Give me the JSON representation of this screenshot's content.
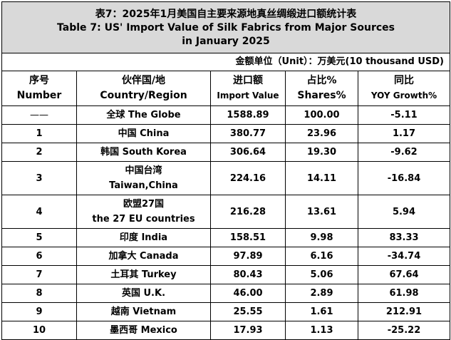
{
  "title": {
    "cn": "表7：2025年1月美国自主要来源地真丝绸缎进口额统计表",
    "en_line1": "Table 7: US' Import Value of Silk Fabrics from Major Sources",
    "en_line2": "in January 2025"
  },
  "unit": "金额单位（Unit）：万美元(10 thousand USD)",
  "headers": [
    {
      "cn": "序号",
      "en": "Number"
    },
    {
      "cn": "伙伴国/地",
      "en": "Country/Region"
    },
    {
      "cn": "进口额",
      "en": "Import Value"
    },
    {
      "cn": "占比%",
      "en": "Shares%"
    },
    {
      "cn": "同比",
      "en": "YOY Growth%"
    }
  ],
  "rows": [
    {
      "no": "——",
      "region": "全球 The Globe",
      "value": "1588.89",
      "share": "100.00",
      "yoy": "-5.11"
    },
    {
      "no": "1",
      "region": "中国 China",
      "value": "380.77",
      "share": "23.96",
      "yoy": "1.17"
    },
    {
      "no": "2",
      "region": "韩国 South Korea",
      "value": "306.64",
      "share": "19.30",
      "yoy": "-9.62"
    },
    {
      "no": "3",
      "region": "中国台湾",
      "region2": "Taiwan,China",
      "value": "224.16",
      "share": "14.11",
      "yoy": "-16.84"
    },
    {
      "no": "4",
      "region": "欧盟27国",
      "region2": "the 27 EU countries",
      "value": "216.28",
      "share": "13.61",
      "yoy": "5.94"
    },
    {
      "no": "5",
      "region": "印度 India",
      "value": "158.51",
      "share": "9.98",
      "yoy": "83.33"
    },
    {
      "no": "6",
      "region": "加拿大 Canada",
      "value": "97.89",
      "share": "6.16",
      "yoy": "-34.74"
    },
    {
      "no": "7",
      "region": "土耳其 Turkey",
      "value": "80.43",
      "share": "5.06",
      "yoy": "67.64"
    },
    {
      "no": "8",
      "region": "英国 U.K.",
      "value": "46.00",
      "share": "2.89",
      "yoy": "61.98"
    },
    {
      "no": "9",
      "region": "越南 Vietnam",
      "value": "25.55",
      "share": "1.61",
      "yoy": "212.91"
    },
    {
      "no": "10",
      "region": "墨西哥 Mexico",
      "value": "17.93",
      "share": "1.13",
      "yoy": "-25.22"
    }
  ]
}
